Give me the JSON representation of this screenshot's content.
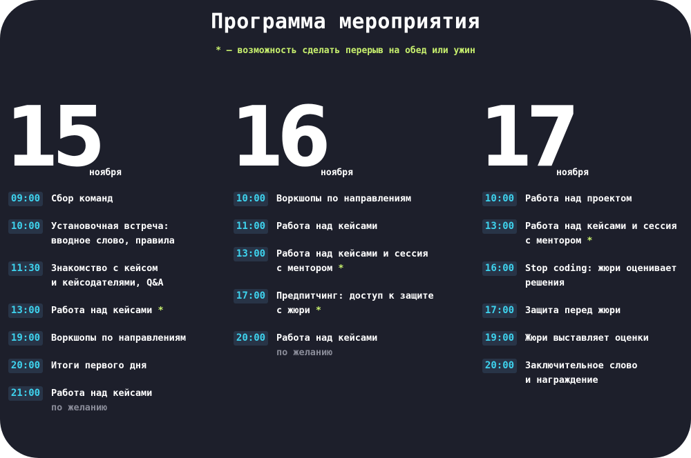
{
  "title": "Программа мероприятия",
  "subtitle": "* — возможность сделать перерыв на обед или ужин",
  "days": [
    {
      "number": "15",
      "month": "ноября",
      "events": [
        {
          "time": "09:00",
          "line1": "Сбор команд",
          "line2": "",
          "star": "",
          "note": ""
        },
        {
          "time": "10:00",
          "line1": "Установочная встреча:",
          "line2": "вводное слово, правила",
          "star": "",
          "note": ""
        },
        {
          "time": "11:30",
          "line1": "Знакомство с кейсом",
          "line2": "и кейсодателями, Q&A",
          "star": "",
          "note": ""
        },
        {
          "time": "13:00",
          "line1": "Работа над кейсами",
          "line2": "",
          "star": "*",
          "note": ""
        },
        {
          "time": "19:00",
          "line1": "Воркшопы по направлениям",
          "line2": "",
          "star": "",
          "note": ""
        },
        {
          "time": "20:00",
          "line1": "Итоги первого дня",
          "line2": "",
          "star": "",
          "note": ""
        },
        {
          "time": "21:00",
          "line1": "Работа над кейсами",
          "line2": "",
          "star": "",
          "note": "по желанию"
        }
      ]
    },
    {
      "number": "16",
      "month": "ноября",
      "events": [
        {
          "time": "10:00",
          "line1": "Воркшопы по направлениям",
          "line2": "",
          "star": "",
          "note": ""
        },
        {
          "time": "11:00",
          "line1": "Работа над кейсами",
          "line2": "",
          "star": "",
          "note": ""
        },
        {
          "time": "13:00",
          "line1": "Работа над кейсами и сессия",
          "line2": "с ментором",
          "star": "*",
          "note": ""
        },
        {
          "time": "17:00",
          "line1": "Предпитчинг: доступ к защите",
          "line2": "с жюри",
          "star": "*",
          "note": ""
        },
        {
          "time": "20:00",
          "line1": "Работа над кейсами",
          "line2": "",
          "star": "",
          "note": "по желанию"
        }
      ]
    },
    {
      "number": "17",
      "month": "ноября",
      "events": [
        {
          "time": "10:00",
          "line1": "Работа над проектом",
          "line2": "",
          "star": "",
          "note": ""
        },
        {
          "time": "13:00",
          "line1": "Работа над кейсами и сессия",
          "line2": "с ментором",
          "star": "*",
          "note": ""
        },
        {
          "time": "16:00",
          "line1": "Stop coding: жюри оценивает",
          "line2": "решения",
          "star": "",
          "note": ""
        },
        {
          "time": "17:00",
          "line1": "Защита перед жюри",
          "line2": "",
          "star": "",
          "note": ""
        },
        {
          "time": "19:00",
          "line1": "Жюри выставляет оценки",
          "line2": "",
          "star": "",
          "note": ""
        },
        {
          "time": "20:00",
          "line1": "Заключительное слово",
          "line2": "и награждение",
          "star": "",
          "note": ""
        }
      ]
    }
  ]
}
